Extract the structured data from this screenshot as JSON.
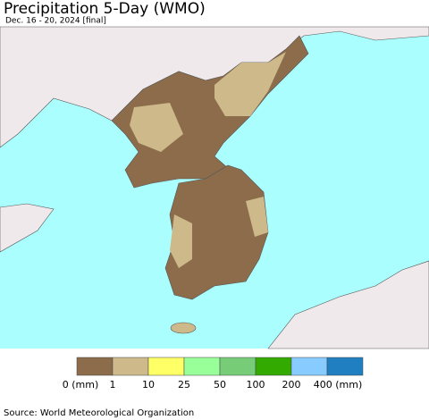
{
  "header": {
    "title": "Precipitation 5-Day (WMO)",
    "subtitle": "Dec. 16 - 20, 2024 [final]"
  },
  "legend": {
    "labels": [
      "0 (mm)",
      "1",
      "10",
      "25",
      "50",
      "100",
      "200",
      "400 (mm)"
    ],
    "colors": [
      "#8c6c4b",
      "#cdb98a",
      "#ffff66",
      "#99ff99",
      "#77cc77",
      "#33aa00",
      "#88ccff",
      "#1f7fc0"
    ]
  },
  "footer": {
    "source": "Source: World Meteorological Organization"
  }
}
